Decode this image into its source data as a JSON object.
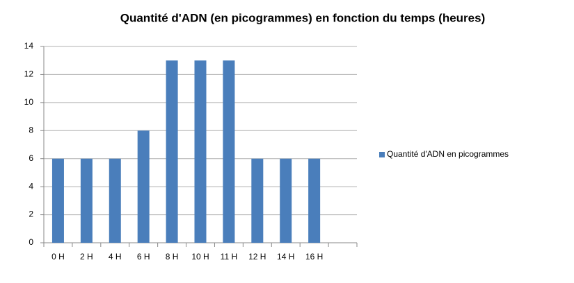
{
  "chart_data": {
    "type": "bar",
    "title": "Quantité d'ADN (en picogrammes) en fonction du temps (heures)",
    "categories": [
      "0 H",
      "2 H",
      "4 H",
      "6 H",
      "8 H",
      "10 H",
      "11 H",
      "12 H",
      "14 H",
      "16 H",
      null
    ],
    "series": [
      {
        "name": "Quantité d'ADN en picogrammes",
        "color": "#4a7ebb",
        "values": [
          6,
          6,
          6,
          8,
          13,
          13,
          13,
          6,
          6,
          6,
          null
        ]
      }
    ],
    "ylim": [
      0,
      14
    ],
    "yticks": [
      0,
      2,
      4,
      6,
      8,
      10,
      12,
      14
    ],
    "grid": true,
    "legend": "right"
  }
}
